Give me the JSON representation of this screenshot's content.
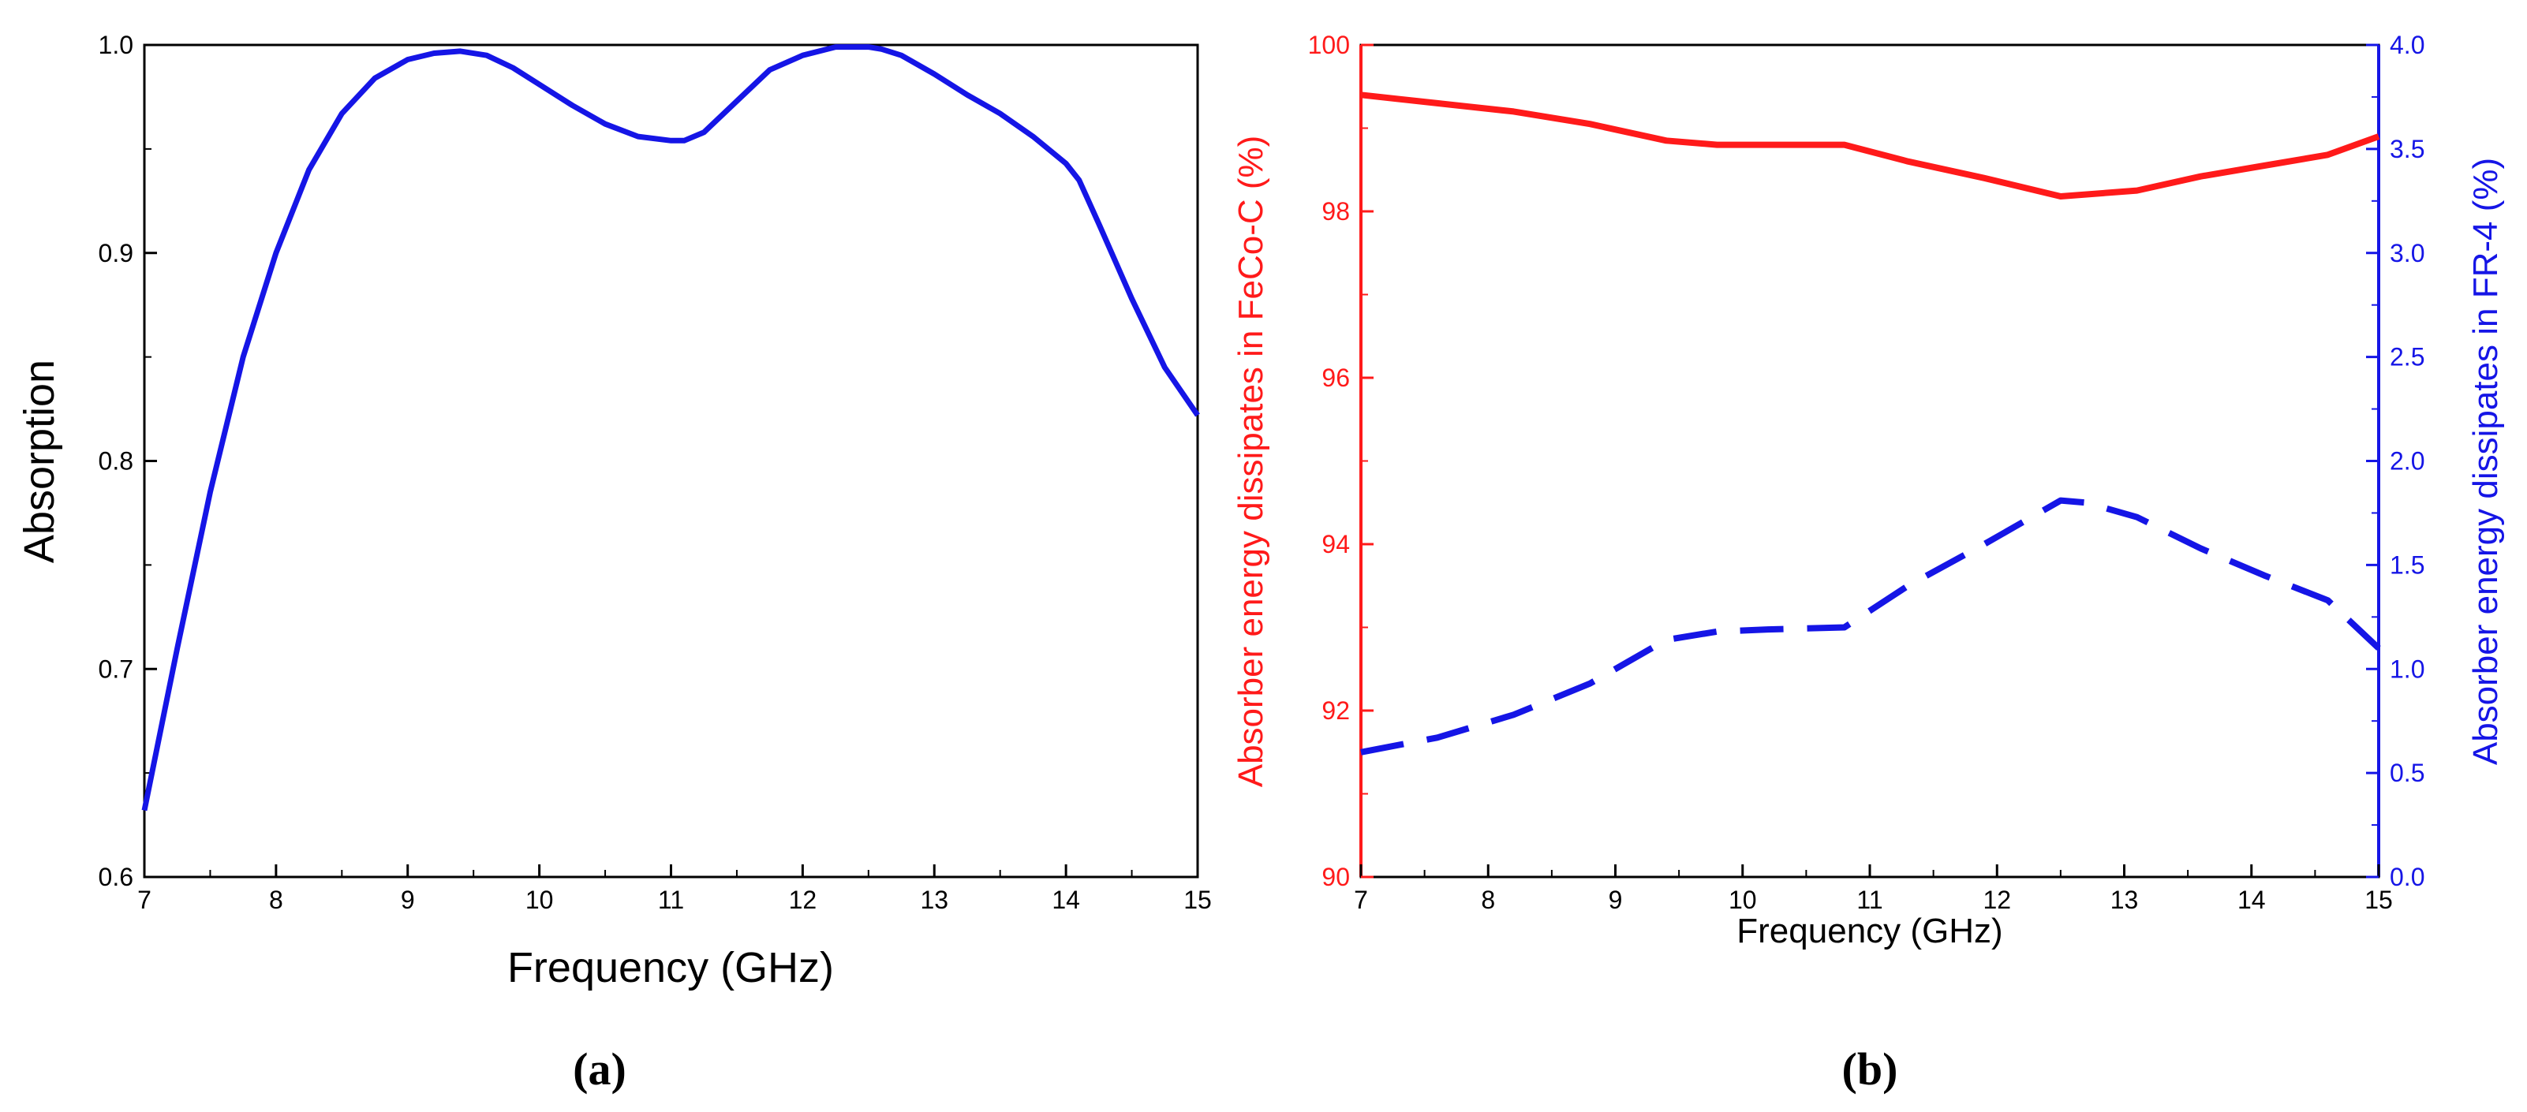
{
  "chart_data": [
    {
      "type": "line",
      "panel_label": "(a)",
      "title": "",
      "xlabel": "Frequency (GHz)",
      "ylabel": "Absorption",
      "xlim": [
        7,
        15
      ],
      "ylim": [
        0.6,
        1.0
      ],
      "xticks": [
        "7",
        "8",
        "9",
        "10",
        "11",
        "12",
        "13",
        "14",
        "15"
      ],
      "yticks": [
        "0.6",
        "0.7",
        "0.8",
        "0.9",
        "1.0"
      ],
      "grid": false,
      "series": [
        {
          "name": "Absorption",
          "color": "#1515e6",
          "style": "solid",
          "x": [
            7.0,
            7.25,
            7.5,
            7.75,
            8.0,
            8.25,
            8.5,
            8.75,
            9.0,
            9.2,
            9.4,
            9.6,
            9.8,
            10.0,
            10.25,
            10.5,
            10.75,
            11.0,
            11.1,
            11.25,
            11.5,
            11.75,
            12.0,
            12.25,
            12.5,
            12.6,
            12.75,
            13.0,
            13.25,
            13.5,
            13.75,
            14.0,
            14.1,
            14.25,
            14.5,
            14.75,
            15.0
          ],
          "y": [
            0.632,
            0.71,
            0.785,
            0.85,
            0.9,
            0.94,
            0.967,
            0.984,
            0.993,
            0.996,
            0.997,
            0.995,
            0.989,
            0.981,
            0.971,
            0.962,
            0.956,
            0.954,
            0.954,
            0.958,
            0.973,
            0.988,
            0.995,
            0.999,
            0.999,
            0.998,
            0.995,
            0.986,
            0.976,
            0.967,
            0.956,
            0.943,
            0.935,
            0.914,
            0.878,
            0.845,
            0.822
          ]
        }
      ]
    },
    {
      "type": "line",
      "panel_label": "(b)",
      "title": "",
      "xlabel": "Frequency (GHz)",
      "ylabel": "Absorber energy dissipates in FeCo-C (%)",
      "ylabel_right": "Absorber energy dissipates in FR-4 (%)",
      "xlim": [
        7,
        15
      ],
      "ylim": [
        90,
        100
      ],
      "ylim_right": [
        0.0,
        4.0
      ],
      "xticks": [
        "7",
        "8",
        "9",
        "10",
        "11",
        "12",
        "13",
        "14",
        "15"
      ],
      "yticks": [
        "90",
        "92",
        "94",
        "96",
        "98",
        "100"
      ],
      "yticks_right": [
        "0.0",
        "0.5",
        "1.0",
        "1.5",
        "2.0",
        "2.5",
        "3.0",
        "3.5",
        "4.0"
      ],
      "grid": false,
      "series": [
        {
          "name": "FeCo-C",
          "axis": "left",
          "color": "#ff1a1a",
          "style": "solid",
          "x": [
            7.0,
            7.6,
            8.2,
            8.8,
            9.4,
            9.8,
            10.2,
            10.8,
            11.3,
            11.9,
            12.5,
            13.1,
            13.6,
            14.1,
            14.6,
            15.0
          ],
          "y": [
            99.4,
            99.3,
            99.2,
            99.05,
            98.85,
            98.8,
            98.8,
            98.8,
            98.6,
            98.4,
            98.18,
            98.25,
            98.42,
            98.55,
            98.68,
            98.9
          ]
        },
        {
          "name": "FR-4",
          "axis": "right",
          "color": "#1515e6",
          "style": "dashed",
          "x": [
            7.0,
            7.6,
            8.2,
            8.8,
            9.4,
            9.8,
            10.2,
            10.8,
            11.3,
            11.9,
            12.5,
            12.7,
            13.1,
            13.6,
            14.1,
            14.6,
            15.0
          ],
          "y": [
            0.6,
            0.67,
            0.78,
            0.93,
            1.14,
            1.18,
            1.19,
            1.2,
            1.4,
            1.6,
            1.81,
            1.8,
            1.73,
            1.58,
            1.45,
            1.33,
            1.1
          ]
        }
      ]
    }
  ]
}
